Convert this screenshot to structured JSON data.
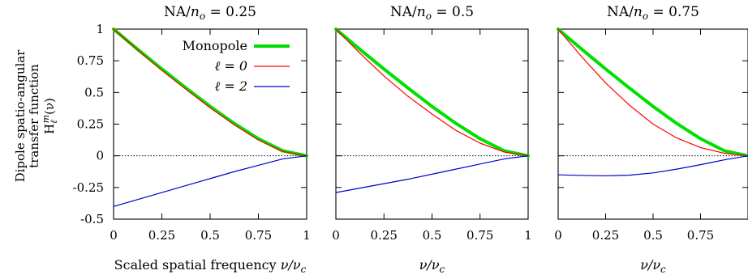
{
  "chart_data": [
    {
      "type": "line",
      "title": "NA/n_o = 0.25",
      "title_parts": {
        "base": "NA/",
        "var": "n",
        "sub": "o",
        "rest": " = 0.25"
      },
      "xlabel": "Scaled spatial frequency ν/ν_c",
      "ylabel_lines": [
        "Dipole spatio-angular",
        "transfer function",
        "H_ℓ^m(ν)"
      ],
      "xlim": [
        0,
        1
      ],
      "ylim": [
        -0.5,
        1
      ],
      "x_ticks": [
        "0",
        "0.25",
        "0.5",
        "0.75",
        "1"
      ],
      "y_ticks": [
        "-0.5",
        "-0.25",
        "0",
        "0.25",
        "0.5",
        "0.75",
        "1"
      ],
      "x": [
        0,
        0.125,
        0.25,
        0.375,
        0.5,
        0.625,
        0.75,
        0.875,
        1
      ],
      "series": [
        {
          "name": "Monopole",
          "color": "#00e000",
          "values": [
            1,
            0.84,
            0.685,
            0.535,
            0.39,
            0.255,
            0.135,
            0.04,
            0
          ]
        },
        {
          "name": "ℓ = 0",
          "color": "#ff0000",
          "values": [
            1,
            0.835,
            0.675,
            0.525,
            0.38,
            0.245,
            0.125,
            0.035,
            0
          ]
        },
        {
          "name": "ℓ = 2",
          "color": "#0000cc",
          "values": [
            -0.4,
            -0.345,
            -0.29,
            -0.235,
            -0.18,
            -0.125,
            -0.075,
            -0.025,
            0
          ]
        }
      ],
      "legend": "top-right"
    },
    {
      "type": "line",
      "title": "NA/n_o = 0.5",
      "title_parts": {
        "base": "NA/",
        "var": "n",
        "sub": "o",
        "rest": " = 0.5"
      },
      "xlabel": "ν/ν_c",
      "xlim": [
        0,
        1
      ],
      "ylim": [
        -0.5,
        1
      ],
      "x_ticks": [
        "0",
        "0.25",
        "0.5",
        "0.75",
        "1"
      ],
      "x": [
        0,
        0.125,
        0.25,
        0.375,
        0.5,
        0.625,
        0.75,
        0.875,
        1
      ],
      "series": [
        {
          "name": "Monopole",
          "color": "#00e000",
          "values": [
            1,
            0.84,
            0.685,
            0.535,
            0.39,
            0.255,
            0.135,
            0.04,
            0
          ]
        },
        {
          "name": "ℓ = 0",
          "color": "#ff0000",
          "values": [
            1,
            0.81,
            0.63,
            0.47,
            0.33,
            0.2,
            0.1,
            0.03,
            0
          ]
        },
        {
          "name": "ℓ = 2",
          "color": "#0000cc",
          "values": [
            -0.29,
            -0.255,
            -0.22,
            -0.185,
            -0.145,
            -0.105,
            -0.065,
            -0.025,
            0
          ]
        }
      ]
    },
    {
      "type": "line",
      "title": "NA/n_o = 0.75",
      "title_parts": {
        "base": "NA/",
        "var": "n",
        "sub": "o",
        "rest": " = 0.75"
      },
      "xlabel": "ν/ν_c",
      "xlim": [
        0,
        1
      ],
      "ylim": [
        -0.5,
        1
      ],
      "x_ticks": [
        "0",
        "0.25",
        "0.5",
        "0.75"
      ],
      "x": [
        0,
        0.125,
        0.25,
        0.375,
        0.5,
        0.625,
        0.75,
        0.875,
        1
      ],
      "series": [
        {
          "name": "Monopole",
          "color": "#00e000",
          "values": [
            1,
            0.84,
            0.685,
            0.535,
            0.39,
            0.255,
            0.135,
            0.04,
            0
          ]
        },
        {
          "name": "ℓ = 0",
          "color": "#ff0000",
          "values": [
            1,
            0.78,
            0.575,
            0.4,
            0.25,
            0.14,
            0.065,
            0.02,
            0
          ]
        },
        {
          "name": "ℓ = 2",
          "color": "#0000cc",
          "values": [
            -0.15,
            -0.155,
            -0.158,
            -0.153,
            -0.135,
            -0.105,
            -0.07,
            -0.032,
            0
          ]
        }
      ]
    }
  ]
}
